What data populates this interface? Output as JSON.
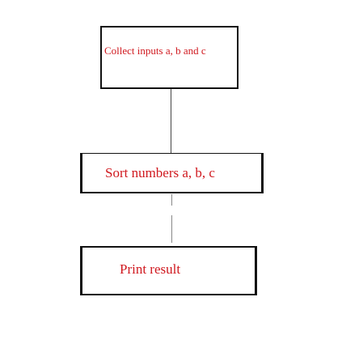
{
  "diagram": {
    "nodes": [
      {
        "id": "collect",
        "label": "Collect inputs a, b and c"
      },
      {
        "id": "sort",
        "label": "Sort numbers a, b, c"
      },
      {
        "id": "print",
        "label": "Print result"
      }
    ],
    "edges": [
      {
        "from": "collect",
        "to": "sort"
      },
      {
        "from": "sort",
        "to": "print"
      }
    ]
  },
  "colors": {
    "text": "#d0191f",
    "border": "#111111",
    "background": "#ffffff"
  }
}
